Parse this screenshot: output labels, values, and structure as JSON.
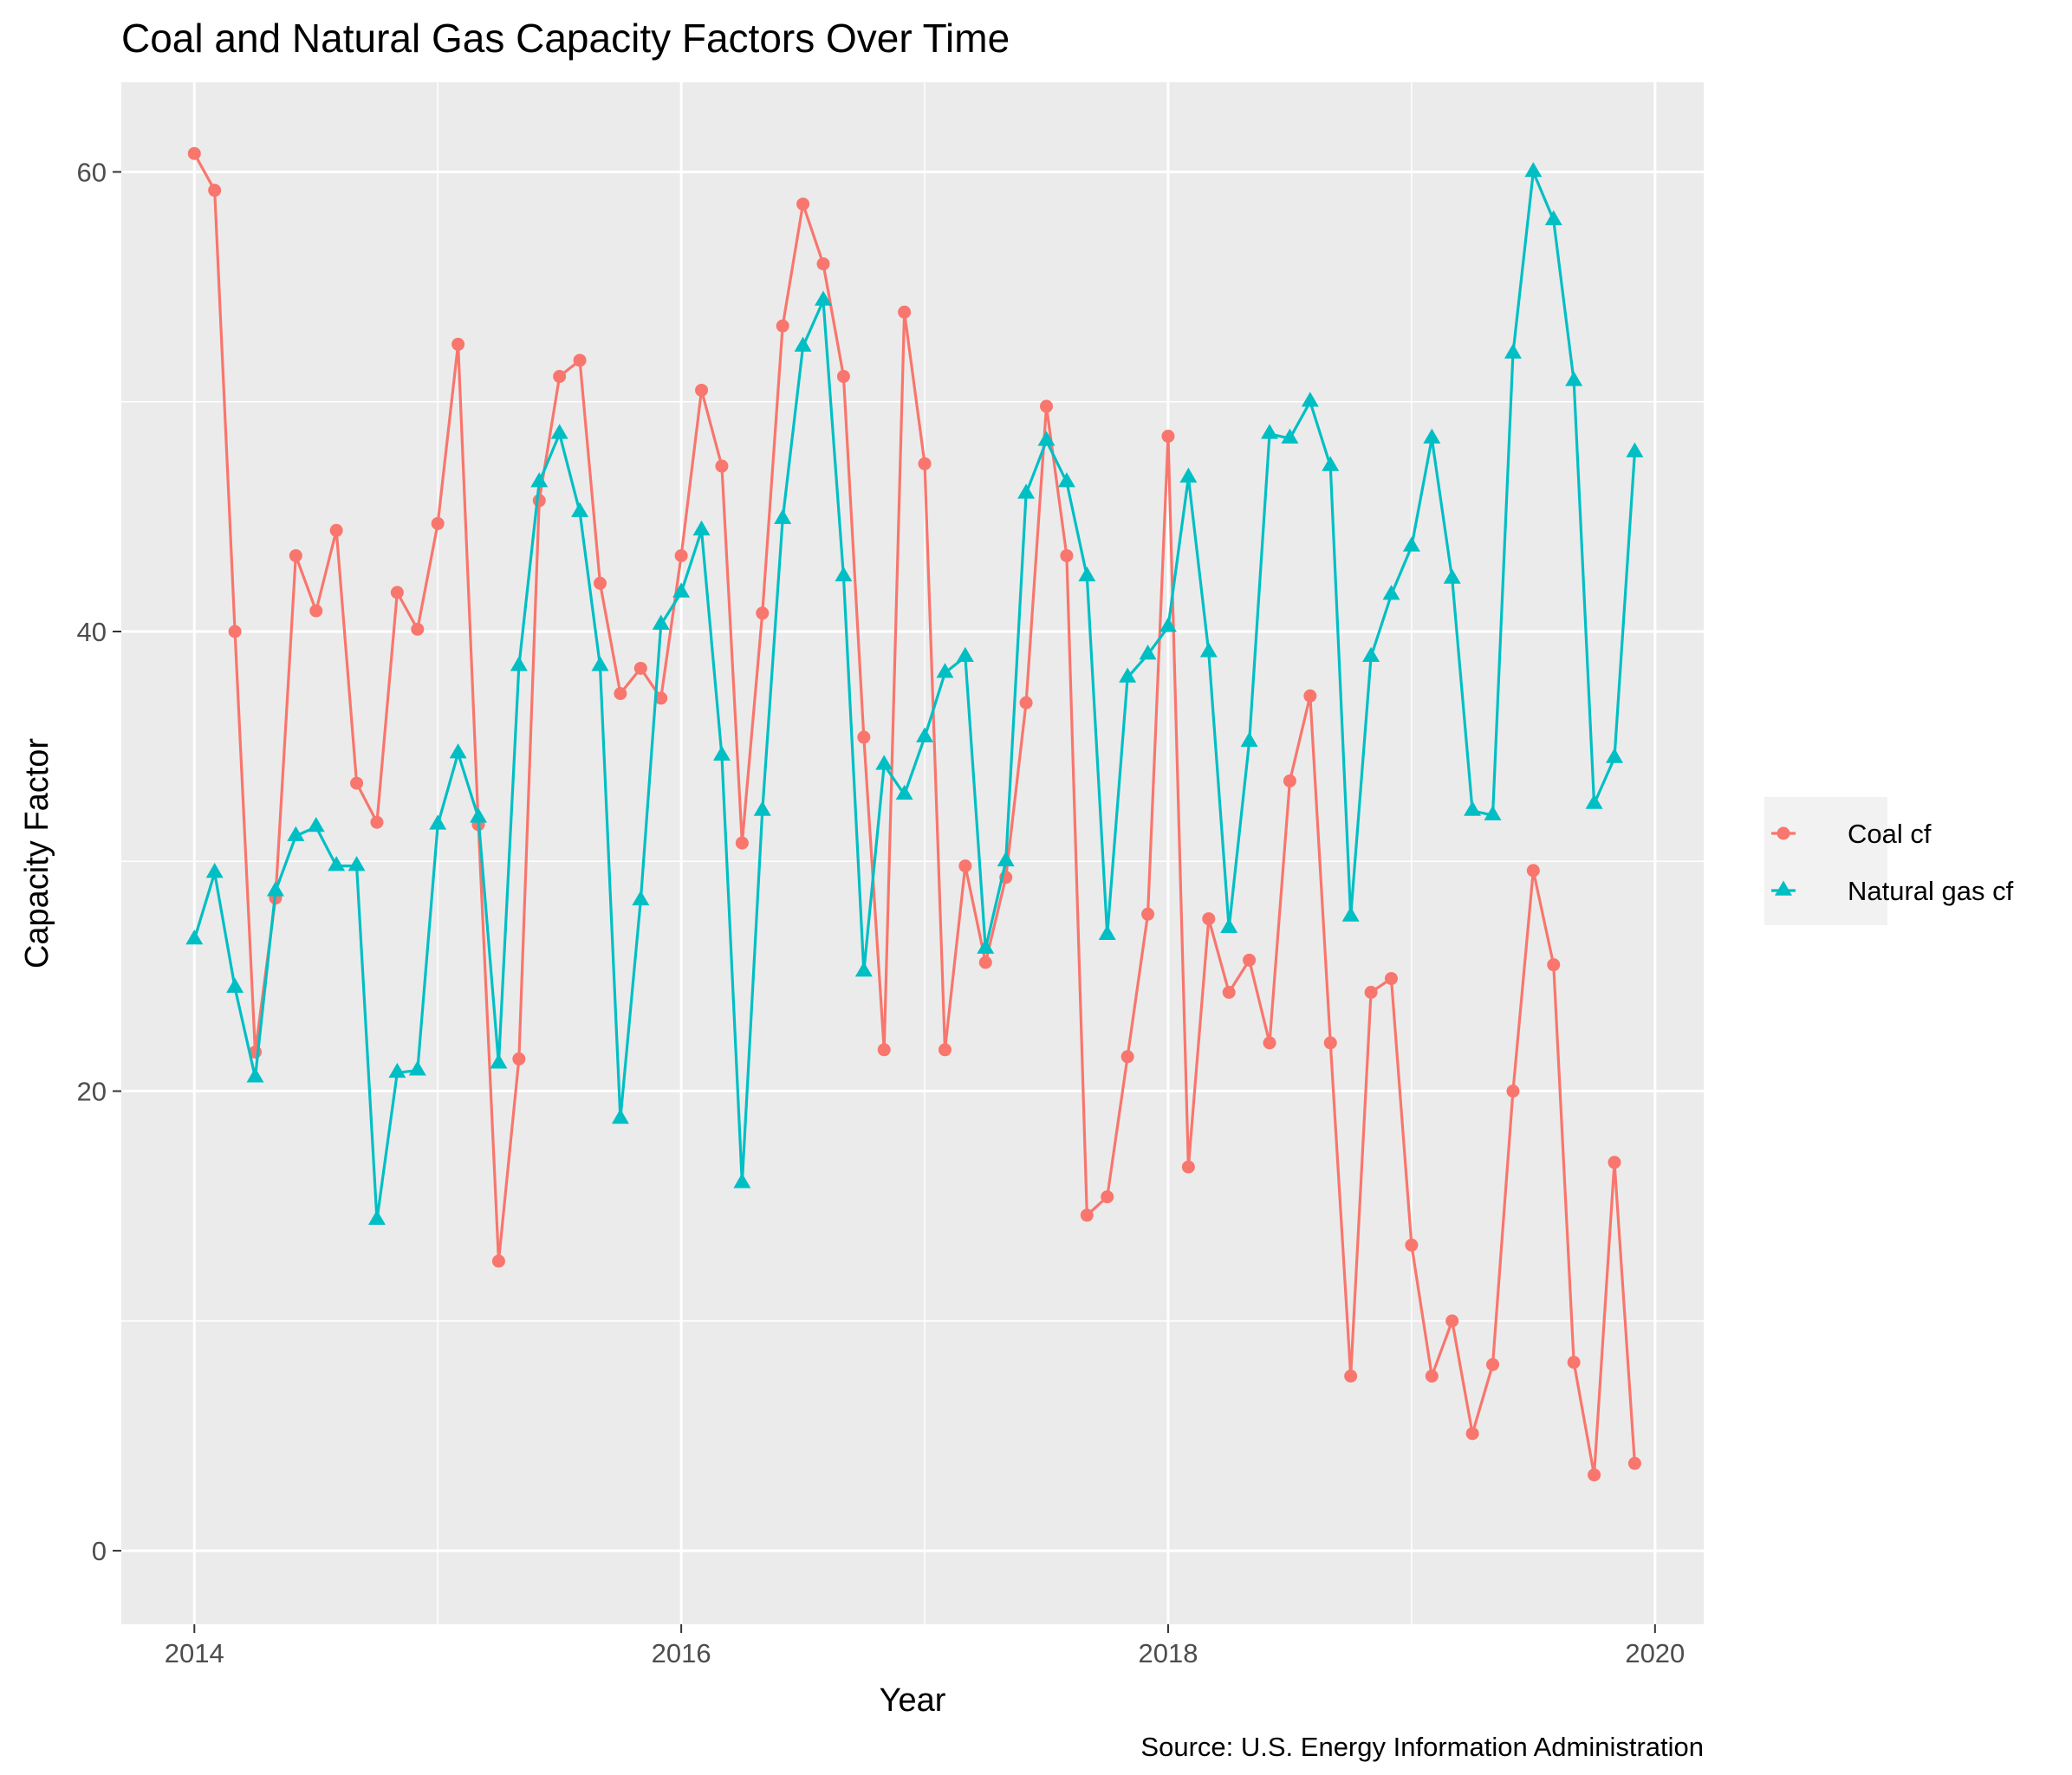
{
  "chart_data": {
    "type": "line",
    "title": "Coal and Natural Gas Capacity Factors Over Time",
    "xlabel": "Year",
    "ylabel": "Capacity Factor",
    "caption": "Source: U.S. Energy Information Administration",
    "x_ticks": [
      "2014",
      "2016",
      "2018",
      "2020"
    ],
    "y_ticks": [
      "0",
      "20",
      "40",
      "60"
    ],
    "xlim": [
      2013.7,
      2020.2
    ],
    "ylim": [
      -3.2,
      63.9
    ],
    "grid": true,
    "legend_position": "right",
    "x_start_year": 2014,
    "x_interval": "monthly",
    "series": [
      {
        "name": "Coal cf",
        "color": "#F8766D",
        "marker": "circle",
        "values": [
          60.8,
          59.2,
          40.0,
          21.7,
          28.4,
          43.3,
          40.9,
          44.4,
          33.4,
          31.7,
          41.7,
          40.1,
          44.7,
          52.5,
          31.6,
          12.6,
          21.4,
          45.7,
          51.1,
          51.8,
          42.1,
          37.3,
          38.4,
          37.1,
          43.3,
          50.5,
          47.2,
          30.8,
          40.8,
          53.3,
          58.6,
          56.0,
          51.1,
          35.4,
          21.8,
          53.9,
          47.3,
          21.8,
          29.8,
          25.6,
          29.3,
          36.9,
          49.8,
          43.3,
          14.6,
          15.4,
          21.5,
          27.7,
          48.5,
          16.7,
          27.5,
          24.3,
          25.7,
          22.1,
          33.5,
          37.2,
          22.1,
          7.6,
          24.3,
          24.9,
          13.3,
          7.6,
          10.0,
          5.1,
          8.1,
          20.0,
          29.6,
          25.5,
          8.2,
          3.3,
          16.9,
          3.8
        ]
      },
      {
        "name": "Natural gas cf",
        "color": "#00BFC4",
        "marker": "triangle",
        "values": [
          26.6,
          29.5,
          24.5,
          20.6,
          28.7,
          31.1,
          31.5,
          29.8,
          29.8,
          14.4,
          20.8,
          20.9,
          31.6,
          34.7,
          31.9,
          21.2,
          38.5,
          46.5,
          48.6,
          45.2,
          38.5,
          18.8,
          28.3,
          40.3,
          41.7,
          44.4,
          34.6,
          16.0,
          32.2,
          44.9,
          52.4,
          54.4,
          42.4,
          25.2,
          34.2,
          32.9,
          35.4,
          38.2,
          38.9,
          26.2,
          30.0,
          46.0,
          48.3,
          46.5,
          42.4,
          26.8,
          38.0,
          39.0,
          40.2,
          46.7,
          39.1,
          27.1,
          35.2,
          48.6,
          48.4,
          50.0,
          47.2,
          27.6,
          38.9,
          41.6,
          43.7,
          48.4,
          42.3,
          32.2,
          32.0,
          52.1,
          60.0,
          57.9,
          50.9,
          32.5,
          34.5,
          47.8
        ]
      }
    ]
  }
}
